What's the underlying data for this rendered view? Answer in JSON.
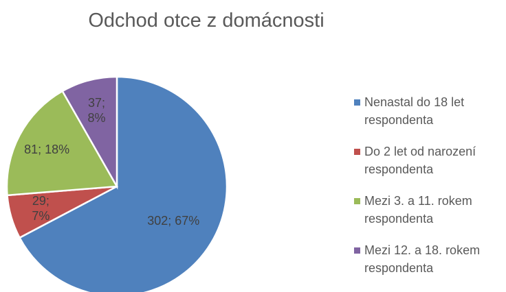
{
  "chart_data": {
    "type": "pie",
    "title": "Odchod otce z domácnosti",
    "categories": [
      "Nenastal do 18 let respondenta",
      "Do 2 let od narození respondenta",
      "Mezi 3. a 11. rokem respondenta",
      "Mezi 12. a 18. rokem respondenta"
    ],
    "values": [
      302,
      29,
      81,
      37
    ],
    "value_labels": [
      "302; 67%",
      "29; 7%",
      "81; 18%",
      "37; 8%"
    ],
    "colors": [
      "#4f81bd",
      "#c0504d",
      "#9bbb59",
      "#8064a2"
    ],
    "legend": "right"
  }
}
